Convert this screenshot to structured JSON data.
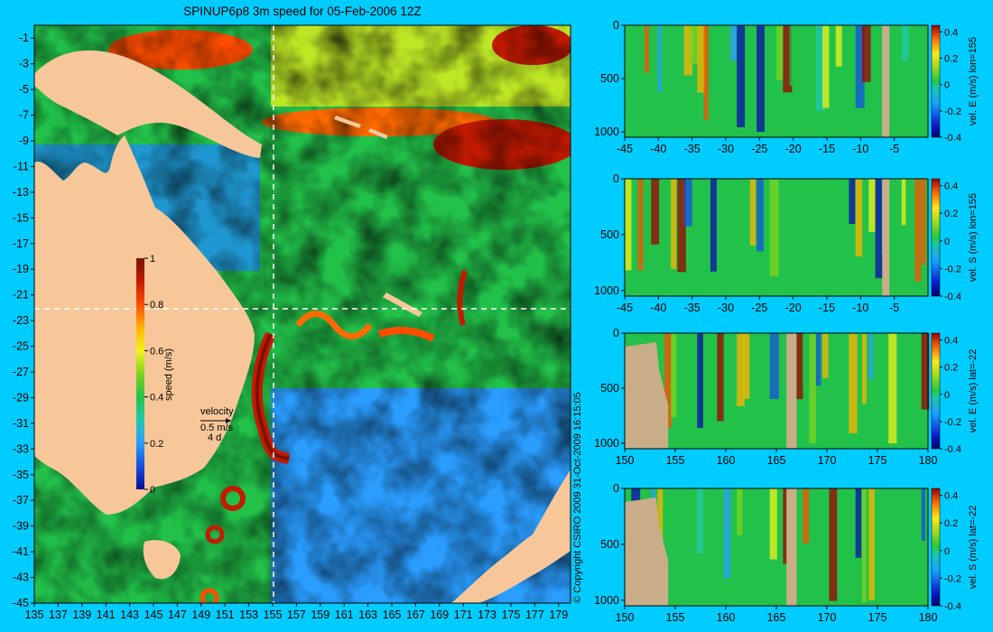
{
  "title": "SPINUP6p8 3m speed for 05-Feb-2006 12Z",
  "copyright": "© Copyright CSIRO 2009   31-Oct-2009 16:15:05",
  "colors": {
    "background": "#00ccff",
    "land": "#f7c79a",
    "panel_land": "#c8ad88",
    "guide_line": "#ffffff",
    "velocity_arrow": "#000000"
  },
  "colormap": [
    "#0b0b8f",
    "#1550e0",
    "#2a9dff",
    "#20c8b0",
    "#22c24a",
    "#7ed31e",
    "#f2f21a",
    "#ffb300",
    "#ff4d00",
    "#c41a00",
    "#7a1200"
  ],
  "map": {
    "title": "SPINUP6p8 3m speed for 05-Feb-2006 12Z",
    "lon_ticks": [
      "135",
      "137",
      "139",
      "141",
      "143",
      "145",
      "147",
      "149",
      "151",
      "153",
      "155",
      "157",
      "159",
      "161",
      "163",
      "165",
      "167",
      "169",
      "171",
      "173",
      "175",
      "177",
      "179"
    ],
    "lat_ticks": [
      "-1",
      "-3",
      "-5",
      "-7",
      "-9",
      "-11",
      "-13",
      "-15",
      "-17",
      "-19",
      "-21",
      "-23",
      "-25",
      "-27",
      "-29",
      "-31",
      "-33",
      "-35",
      "-37",
      "-39",
      "-41",
      "-43",
      "-45"
    ],
    "lon_range": [
      135,
      180
    ],
    "lat_range": [
      -45,
      0
    ],
    "guide_lon": 155,
    "guide_lat": -22,
    "colorbar": {
      "label": "speed (m/s)",
      "ticks": [
        "1",
        "0.8",
        "0.6",
        "0.4",
        "0.2",
        "0"
      ]
    },
    "velocity_key": {
      "title": "velocity",
      "speed": "0.5 m/s",
      "scale": "4 d"
    }
  },
  "chart_data": [
    {
      "type": "heatmap",
      "title": "SPINUP6p8 3m speed for 05-Feb-2006 12Z",
      "xlabel": "",
      "ylabel": "",
      "x_range": [
        135,
        180
      ],
      "y_range": [
        -45,
        0
      ],
      "colorbar_label": "speed (m/s)",
      "colorbar_range": [
        0,
        1
      ],
      "guides": {
        "lon": 155,
        "lat": -22
      },
      "grid": false
    },
    {
      "type": "heatmap",
      "xlabel": "",
      "ylabel": "",
      "x_ticks": [
        "-45",
        "-40",
        "-35",
        "-30",
        "-25",
        "-20",
        "-15",
        "-10",
        "-5"
      ],
      "x_range": [
        -45,
        0
      ],
      "y_ticks": [
        "0",
        "500",
        "1000"
      ],
      "y_range": [
        1050,
        0
      ],
      "colorbar_label": "vel. E (m/s) lon=155",
      "colorbar_ticks": [
        "0.4",
        "0.2",
        "0",
        "-0.2",
        "-0.4"
      ],
      "colorbar_range": [
        -0.4,
        0.45
      ]
    },
    {
      "type": "heatmap",
      "xlabel": "",
      "ylabel": "",
      "x_ticks": [
        "-45",
        "-40",
        "-35",
        "-30",
        "-25",
        "-20",
        "-15",
        "-10",
        "-5"
      ],
      "x_range": [
        -45,
        0
      ],
      "y_ticks": [
        "0",
        "500",
        "1000"
      ],
      "y_range": [
        1050,
        0
      ],
      "colorbar_label": "vel. S (m/s) lon=155",
      "colorbar_ticks": [
        "0.4",
        "0.2",
        "0",
        "-0.2",
        "-0.4"
      ],
      "colorbar_range": [
        -0.4,
        0.45
      ]
    },
    {
      "type": "heatmap",
      "xlabel": "",
      "ylabel": "",
      "x_ticks": [
        "150",
        "155",
        "160",
        "165",
        "170",
        "175",
        "180"
      ],
      "x_range": [
        150,
        180
      ],
      "y_ticks": [
        "0",
        "500",
        "1000"
      ],
      "y_range": [
        1050,
        0
      ],
      "colorbar_label": "vel. E (m/s) lat=-22",
      "colorbar_ticks": [
        "0.4",
        "0.2",
        "0",
        "-0.2",
        "-0.4"
      ],
      "colorbar_range": [
        -0.4,
        0.45
      ]
    },
    {
      "type": "heatmap",
      "xlabel": "",
      "ylabel": "",
      "x_ticks": [
        "150",
        "155",
        "160",
        "165",
        "170",
        "175",
        "180"
      ],
      "x_range": [
        150,
        180
      ],
      "y_ticks": [
        "0",
        "500",
        "1000"
      ],
      "y_range": [
        1050,
        0
      ],
      "colorbar_label": "vel. S (m/s) lat=-22",
      "colorbar_ticks": [
        "0.4",
        "0.2",
        "0",
        "-0.2",
        "-0.4"
      ],
      "colorbar_range": [
        -0.4,
        0.45
      ]
    }
  ]
}
